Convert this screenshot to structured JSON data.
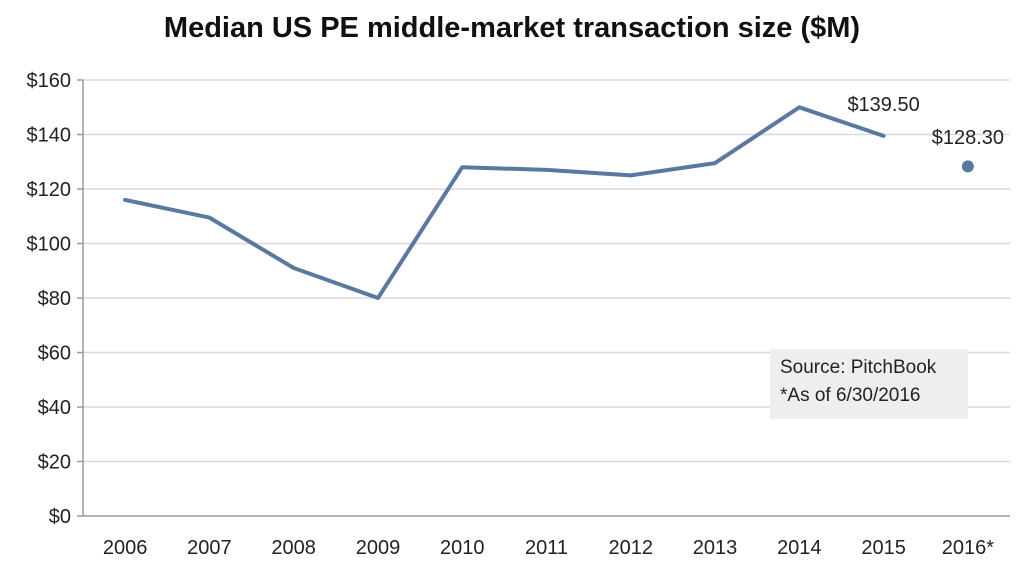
{
  "chart_data": {
    "type": "line",
    "title": "Median US PE middle-market transaction size ($M)",
    "xlabel": "",
    "ylabel": "",
    "categories": [
      "2006",
      "2007",
      "2008",
      "2009",
      "2010",
      "2011",
      "2012",
      "2013",
      "2014",
      "2015",
      "2016*"
    ],
    "series": [
      {
        "values": [
          116,
          109.5,
          91,
          80,
          128,
          127,
          125,
          129.5,
          150,
          139.5,
          null
        ],
        "color": "#587aa0"
      },
      {
        "values": [
          null,
          null,
          null,
          null,
          null,
          null,
          null,
          null,
          null,
          null,
          128.3
        ],
        "color": "#587aa0",
        "marker": "point"
      }
    ],
    "ylim": [
      0,
      160
    ],
    "yticks": [
      0,
      20,
      40,
      60,
      80,
      100,
      120,
      140,
      160
    ],
    "ytick_labels": [
      "$0",
      "$20",
      "$40",
      "$60",
      "$80",
      "$100",
      "$120",
      "$140",
      "$160"
    ],
    "grid": true,
    "annotations": [
      {
        "category": "2015",
        "text": "$139.50"
      },
      {
        "category": "2016*",
        "text": "$128.30"
      }
    ],
    "notes": [
      "Source: PitchBook",
      "*As of 6/30/2016"
    ]
  }
}
